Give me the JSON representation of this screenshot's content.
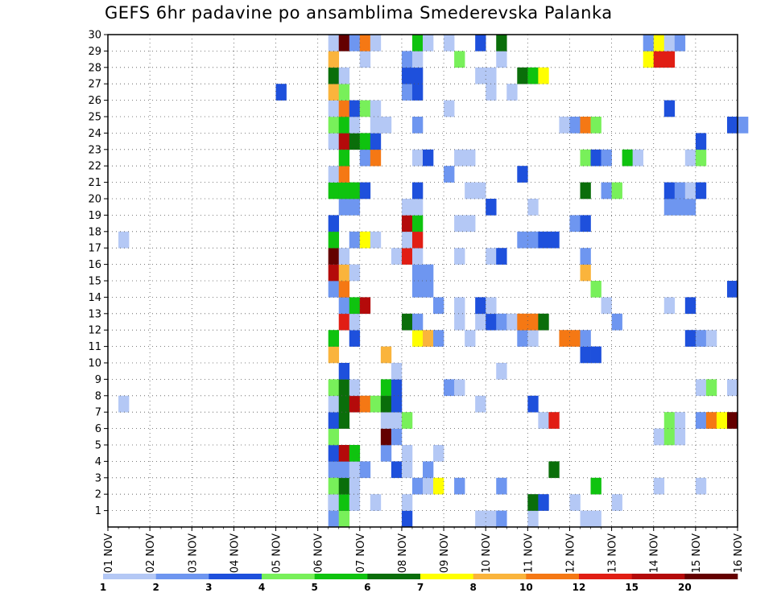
{
  "chart_data": {
    "type": "heatmap",
    "title": "GEFS 6hr padavine po ansamblima Smederevska Palanka",
    "x_tick_labels": [
      "01 NOV",
      "02 NOV",
      "03 NOV",
      "04 NOV",
      "05 NOV",
      "06 NOV",
      "07 NOV",
      "08 NOV",
      "09 NOV",
      "10 NOV",
      "11 NOV",
      "12 NOV",
      "13 NOV",
      "14 NOV",
      "15 NOV",
      "16 NOV"
    ],
    "x_range": [
      "01 NOV",
      "16 NOV"
    ],
    "time_step_hours": 6,
    "y_tick_labels": [
      "1",
      "2",
      "3",
      "4",
      "5",
      "6",
      "7",
      "8",
      "9",
      "10",
      "11",
      "12",
      "13",
      "14",
      "15",
      "16",
      "17",
      "18",
      "19",
      "20",
      "21",
      "22",
      "23",
      "24",
      "25",
      "26",
      "27",
      "28",
      "29",
      "30"
    ],
    "y_range": [
      0,
      30
    ],
    "grid": "dotted",
    "colorbar": {
      "labels": [
        "1",
        "2",
        "3",
        "4",
        "5",
        "6",
        "7",
        "8",
        "10",
        "12",
        "15",
        "20"
      ],
      "colors": [
        "#b4c8f5",
        "#6e96f0",
        "#1e50dc",
        "#78f05a",
        "#0fc30f",
        "#0a6e0a",
        "#ffff00",
        "#fab43c",
        "#f57814",
        "#e11e14",
        "#b40a0a",
        "#640000"
      ]
    },
    "cell_levels": "0=1-2,1=2-3,2=3-4,3=4-5,4=5-6,5=6-7,6=7-8,7=8-10,8=10-12,9=12-15,10=15-20,11=>20",
    "cells": [
      [
        21,
        1,
        1
      ],
      [
        21,
        2,
        2
      ],
      [
        21,
        4,
        1
      ],
      [
        22,
        1,
        3
      ],
      [
        22,
        2,
        5
      ],
      [
        22,
        4,
        1
      ],
      [
        25,
        2,
        0
      ],
      [
        28,
        1,
        2
      ],
      [
        28,
        2,
        0
      ],
      [
        35,
        1,
        0
      ],
      [
        36,
        1,
        0
      ],
      [
        37,
        1,
        1
      ],
      [
        40,
        1,
        0
      ],
      [
        40,
        2,
        0
      ],
      [
        45,
        1,
        0
      ],
      [
        46,
        1,
        0
      ],
      [
        21,
        2,
        0
      ],
      [
        22,
        2,
        4
      ],
      [
        23,
        2,
        0
      ],
      [
        40,
        2,
        5
      ],
      [
        41,
        2,
        2
      ],
      [
        44,
        2,
        0
      ],
      [
        48,
        2,
        0
      ],
      [
        21,
        3,
        3
      ],
      [
        22,
        3,
        5
      ],
      [
        23,
        3,
        0
      ],
      [
        29,
        3,
        1
      ],
      [
        30,
        3,
        0
      ],
      [
        31,
        3,
        6
      ],
      [
        33,
        3,
        1
      ],
      [
        37,
        3,
        1
      ],
      [
        46,
        3,
        4
      ],
      [
        52,
        3,
        0
      ],
      [
        56,
        3,
        0
      ],
      [
        22,
        4,
        1
      ],
      [
        23,
        4,
        0
      ],
      [
        24,
        4,
        1
      ],
      [
        27,
        4,
        2
      ],
      [
        28,
        4,
        0
      ],
      [
        30,
        4,
        1
      ],
      [
        42,
        4,
        5
      ],
      [
        21,
        5,
        2
      ],
      [
        22,
        5,
        10
      ],
      [
        23,
        5,
        4
      ],
      [
        26,
        5,
        1
      ],
      [
        28,
        5,
        0
      ],
      [
        31,
        5,
        0
      ],
      [
        21,
        6,
        3
      ],
      [
        26,
        6,
        11
      ],
      [
        27,
        6,
        1
      ],
      [
        52,
        6,
        0
      ],
      [
        53,
        6,
        3
      ],
      [
        54,
        6,
        0
      ],
      [
        21,
        7,
        2
      ],
      [
        22,
        7,
        5
      ],
      [
        26,
        7,
        0
      ],
      [
        27,
        7,
        0
      ],
      [
        28,
        7,
        3
      ],
      [
        41,
        7,
        0
      ],
      [
        42,
        7,
        9
      ],
      [
        53,
        7,
        3
      ],
      [
        54,
        7,
        0
      ],
      [
        56,
        7,
        1
      ],
      [
        57,
        7,
        8
      ],
      [
        58,
        7,
        6
      ],
      [
        59,
        7,
        11
      ],
      [
        1,
        8,
        0
      ],
      [
        21,
        8,
        0
      ],
      [
        22,
        8,
        5
      ],
      [
        23,
        8,
        10
      ],
      [
        24,
        8,
        8
      ],
      [
        25,
        8,
        3
      ],
      [
        26,
        8,
        5
      ],
      [
        27,
        8,
        2
      ],
      [
        35,
        8,
        0
      ],
      [
        40,
        8,
        2
      ],
      [
        21,
        9,
        3
      ],
      [
        22,
        9,
        5
      ],
      [
        23,
        9,
        0
      ],
      [
        26,
        9,
        4
      ],
      [
        27,
        9,
        2
      ],
      [
        32,
        9,
        1
      ],
      [
        33,
        9,
        0
      ],
      [
        56,
        9,
        0
      ],
      [
        57,
        9,
        3
      ],
      [
        59,
        9,
        0
      ],
      [
        22,
        10,
        2
      ],
      [
        27,
        10,
        0
      ],
      [
        37,
        10,
        0
      ],
      [
        21,
        11,
        7
      ],
      [
        26,
        11,
        7
      ],
      [
        45,
        11,
        2
      ],
      [
        46,
        11,
        2
      ],
      [
        21,
        12,
        4
      ],
      [
        23,
        12,
        2
      ],
      [
        29,
        12,
        6
      ],
      [
        30,
        12,
        7
      ],
      [
        31,
        12,
        1
      ],
      [
        34,
        12,
        0
      ],
      [
        39,
        12,
        1
      ],
      [
        40,
        12,
        0
      ],
      [
        43,
        12,
        8
      ],
      [
        44,
        12,
        8
      ],
      [
        45,
        12,
        1
      ],
      [
        55,
        12,
        2
      ],
      [
        56,
        12,
        1
      ],
      [
        57,
        12,
        0
      ],
      [
        22,
        13,
        9
      ],
      [
        23,
        13,
        0
      ],
      [
        28,
        13,
        5
      ],
      [
        29,
        13,
        1
      ],
      [
        33,
        13,
        0
      ],
      [
        35,
        13,
        0
      ],
      [
        36,
        13,
        2
      ],
      [
        37,
        13,
        1
      ],
      [
        38,
        13,
        0
      ],
      [
        39,
        13,
        8
      ],
      [
        40,
        13,
        8
      ],
      [
        41,
        13,
        5
      ],
      [
        48,
        13,
        1
      ],
      [
        22,
        14,
        1
      ],
      [
        23,
        14,
        4
      ],
      [
        24,
        14,
        10
      ],
      [
        31,
        14,
        1
      ],
      [
        33,
        14,
        0
      ],
      [
        35,
        14,
        2
      ],
      [
        36,
        14,
        0
      ],
      [
        47,
        14,
        0
      ],
      [
        53,
        14,
        0
      ],
      [
        55,
        14,
        2
      ],
      [
        21,
        15,
        1
      ],
      [
        22,
        15,
        8
      ],
      [
        29,
        15,
        1
      ],
      [
        30,
        15,
        1
      ],
      [
        46,
        15,
        3
      ],
      [
        59,
        15,
        2
      ],
      [
        21,
        16,
        10
      ],
      [
        22,
        16,
        7
      ],
      [
        23,
        16,
        0
      ],
      [
        29,
        16,
        1
      ],
      [
        30,
        16,
        1
      ],
      [
        45,
        16,
        7
      ],
      [
        21,
        17,
        11
      ],
      [
        22,
        17,
        0
      ],
      [
        27,
        17,
        0
      ],
      [
        28,
        17,
        9
      ],
      [
        29,
        17,
        0
      ],
      [
        33,
        17,
        0
      ],
      [
        36,
        17,
        0
      ],
      [
        37,
        17,
        2
      ],
      [
        45,
        17,
        1
      ],
      [
        1,
        18,
        0
      ],
      [
        21,
        18,
        4
      ],
      [
        23,
        18,
        1
      ],
      [
        24,
        18,
        6
      ],
      [
        25,
        18,
        0
      ],
      [
        28,
        18,
        0
      ],
      [
        29,
        18,
        9
      ],
      [
        39,
        18,
        1
      ],
      [
        40,
        18,
        1
      ],
      [
        41,
        18,
        2
      ],
      [
        42,
        18,
        2
      ],
      [
        21,
        19,
        2
      ],
      [
        28,
        19,
        10
      ],
      [
        29,
        19,
        4
      ],
      [
        33,
        19,
        0
      ],
      [
        34,
        19,
        0
      ],
      [
        44,
        19,
        1
      ],
      [
        45,
        19,
        2
      ],
      [
        22,
        20,
        1
      ],
      [
        23,
        20,
        1
      ],
      [
        28,
        20,
        0
      ],
      [
        29,
        20,
        0
      ],
      [
        36,
        20,
        2
      ],
      [
        40,
        20,
        0
      ],
      [
        53,
        20,
        1
      ],
      [
        54,
        20,
        1
      ],
      [
        55,
        20,
        1
      ],
      [
        21,
        21,
        4
      ],
      [
        22,
        21,
        4
      ],
      [
        23,
        21,
        4
      ],
      [
        24,
        21,
        2
      ],
      [
        29,
        21,
        2
      ],
      [
        34,
        21,
        0
      ],
      [
        35,
        21,
        0
      ],
      [
        45,
        21,
        5
      ],
      [
        47,
        21,
        1
      ],
      [
        48,
        21,
        3
      ],
      [
        53,
        21,
        2
      ],
      [
        54,
        21,
        1
      ],
      [
        55,
        21,
        0
      ],
      [
        56,
        21,
        2
      ],
      [
        21,
        22,
        0
      ],
      [
        22,
        22,
        8
      ],
      [
        32,
        22,
        1
      ],
      [
        39,
        22,
        2
      ],
      [
        22,
        23,
        4
      ],
      [
        24,
        23,
        1
      ],
      [
        25,
        23,
        8
      ],
      [
        29,
        23,
        0
      ],
      [
        30,
        23,
        2
      ],
      [
        33,
        23,
        0
      ],
      [
        34,
        23,
        0
      ],
      [
        45,
        23,
        3
      ],
      [
        46,
        23,
        2
      ],
      [
        47,
        23,
        1
      ],
      [
        49,
        23,
        4
      ],
      [
        50,
        23,
        0
      ],
      [
        55,
        23,
        0
      ],
      [
        56,
        23,
        3
      ],
      [
        21,
        24,
        0
      ],
      [
        22,
        24,
        10
      ],
      [
        23,
        24,
        5
      ],
      [
        24,
        24,
        4
      ],
      [
        25,
        24,
        2
      ],
      [
        56,
        24,
        2
      ],
      [
        21,
        25,
        3
      ],
      [
        22,
        25,
        4
      ],
      [
        23,
        25,
        0
      ],
      [
        25,
        25,
        0
      ],
      [
        26,
        25,
        0
      ],
      [
        29,
        25,
        1
      ],
      [
        43,
        25,
        0
      ],
      [
        44,
        25,
        1
      ],
      [
        45,
        25,
        8
      ],
      [
        46,
        25,
        3
      ],
      [
        59,
        25,
        2
      ],
      [
        60,
        25,
        1
      ],
      [
        21,
        26,
        0
      ],
      [
        22,
        26,
        8
      ],
      [
        23,
        26,
        2
      ],
      [
        24,
        26,
        3
      ],
      [
        25,
        26,
        0
      ],
      [
        32,
        26,
        0
      ],
      [
        53,
        26,
        2
      ],
      [
        16,
        27,
        2
      ],
      [
        21,
        27,
        7
      ],
      [
        22,
        27,
        3
      ],
      [
        28,
        27,
        1
      ],
      [
        29,
        27,
        2
      ],
      [
        36,
        27,
        0
      ],
      [
        38,
        27,
        0
      ],
      [
        21,
        28,
        5
      ],
      [
        22,
        28,
        0
      ],
      [
        28,
        28,
        2
      ],
      [
        29,
        28,
        2
      ],
      [
        35,
        28,
        0
      ],
      [
        36,
        28,
        0
      ],
      [
        39,
        28,
        5
      ],
      [
        40,
        28,
        4
      ],
      [
        41,
        28,
        6
      ],
      [
        21,
        29,
        7
      ],
      [
        24,
        29,
        0
      ],
      [
        28,
        29,
        1
      ],
      [
        29,
        29,
        0
      ],
      [
        33,
        29,
        3
      ],
      [
        37,
        29,
        0
      ],
      [
        51,
        29,
        6
      ],
      [
        52,
        29,
        9
      ],
      [
        53,
        29,
        9
      ],
      [
        21,
        30,
        0
      ],
      [
        22,
        30,
        11
      ],
      [
        23,
        30,
        1
      ],
      [
        24,
        30,
        8
      ],
      [
        25,
        30,
        0
      ],
      [
        29,
        30,
        4
      ],
      [
        30,
        30,
        0
      ],
      [
        32,
        30,
        0
      ],
      [
        35,
        30,
        2
      ],
      [
        37,
        30,
        5
      ],
      [
        51,
        30,
        1
      ],
      [
        52,
        30,
        6
      ],
      [
        53,
        30,
        0
      ],
      [
        54,
        30,
        1
      ]
    ]
  }
}
